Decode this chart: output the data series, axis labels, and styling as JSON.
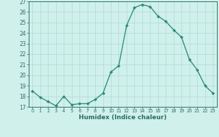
{
  "x": [
    0,
    1,
    2,
    3,
    4,
    5,
    6,
    7,
    8,
    9,
    10,
    11,
    12,
    13,
    14,
    15,
    16,
    17,
    18,
    19,
    20,
    21,
    22,
    23
  ],
  "y": [
    18.5,
    17.9,
    17.5,
    17.1,
    18.0,
    17.2,
    17.3,
    17.3,
    17.7,
    18.3,
    20.3,
    20.9,
    24.7,
    26.4,
    26.7,
    26.5,
    25.6,
    25.1,
    24.3,
    23.6,
    21.5,
    20.5,
    19.0,
    18.3
  ],
  "line_color": "#2e8b7a",
  "marker": "D",
  "marker_size": 2.2,
  "bg_color": "#cff0eb",
  "grid_color": "#b0d8d2",
  "xlabel": "Humidex (Indice chaleur)",
  "ylim": [
    17,
    27
  ],
  "xlim": [
    -0.5,
    23.5
  ],
  "yticks": [
    17,
    18,
    19,
    20,
    21,
    22,
    23,
    24,
    25,
    26,
    27
  ],
  "xticks": [
    0,
    1,
    2,
    3,
    4,
    5,
    6,
    7,
    8,
    9,
    10,
    11,
    12,
    13,
    14,
    15,
    16,
    17,
    18,
    19,
    20,
    21,
    22,
    23
  ],
  "tick_color": "#2e6b60",
  "label_color": "#2e6b60",
  "spine_color": "#2e6b60",
  "grid_major_color": "#c8e8e2",
  "grid_minor_color": "#daf2ee"
}
